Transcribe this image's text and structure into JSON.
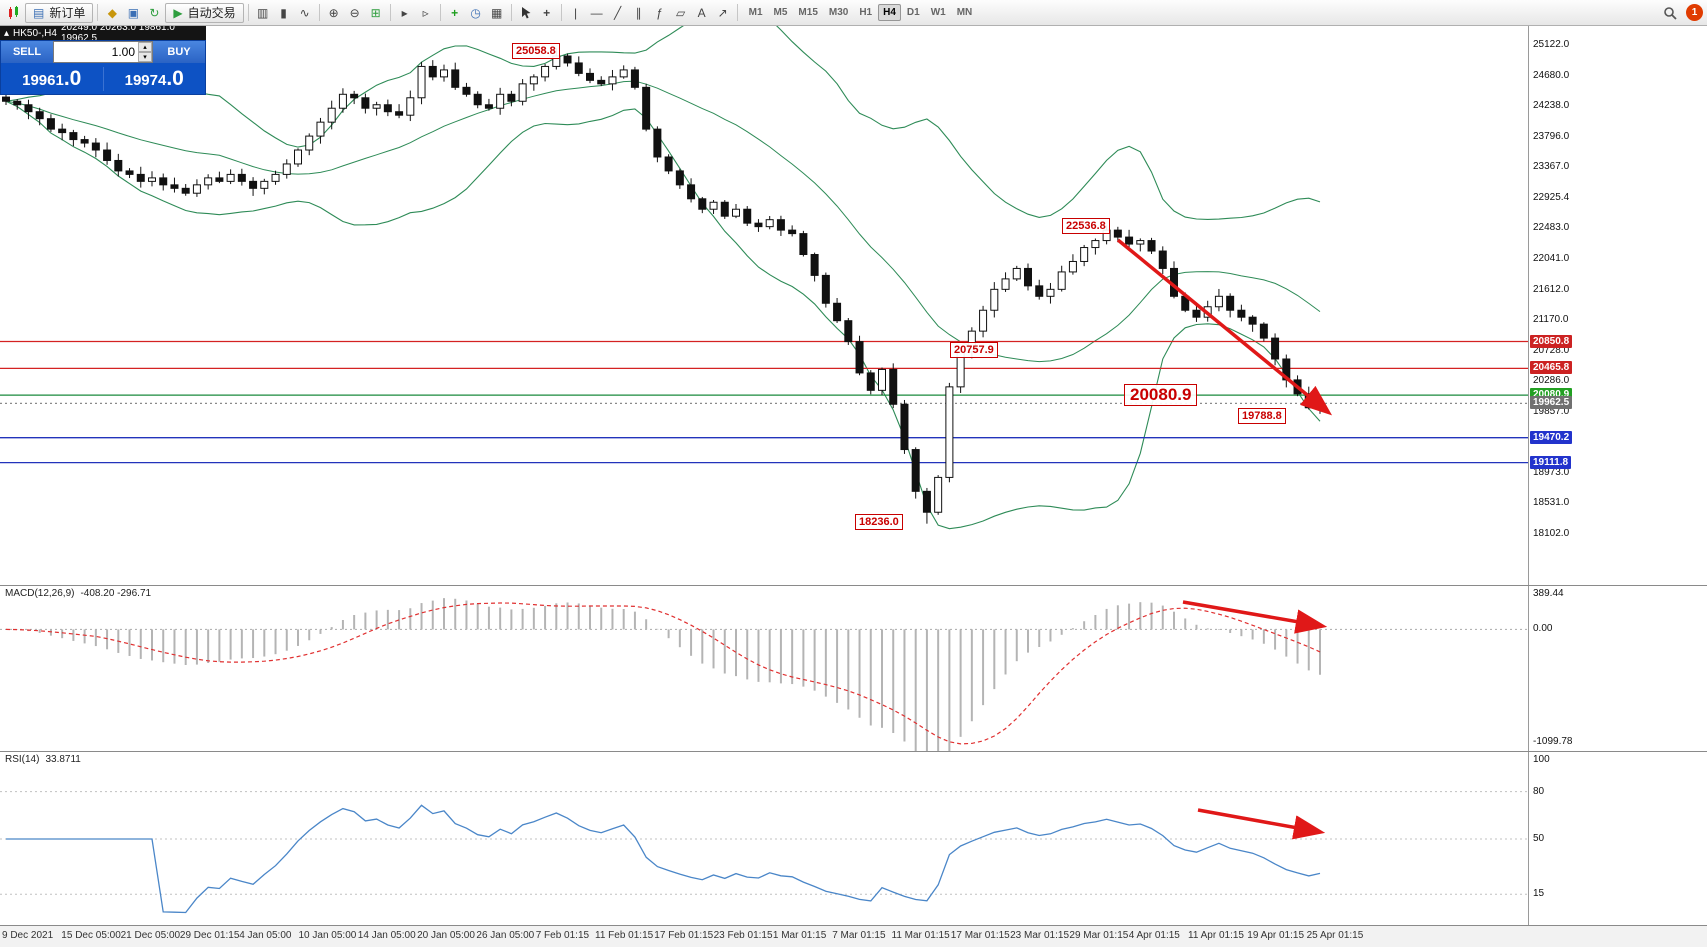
{
  "window": {
    "notification_badge": "1"
  },
  "toolbar": {
    "new_order_label": "新订单",
    "auto_trading_label": "自动交易",
    "timeframes": [
      "M1",
      "M5",
      "M15",
      "M30",
      "H1",
      "H4",
      "D1",
      "W1",
      "MN"
    ],
    "active_timeframe": "H4"
  },
  "icons": {
    "symbol_mark": "▴",
    "new_order": "▤",
    "market_watch": "◆",
    "data_window": "▣",
    "refresh": "↻",
    "auto_play": "▶",
    "bar_chart": "▥",
    "candle_chart": "▮",
    "line_chart": "∿",
    "zoom_in": "⊕",
    "zoom_out": "⊖",
    "tile_windows": "⊞",
    "auto_scroll": "▸",
    "chart_shift": "▹",
    "indicators": "+",
    "period": "◷",
    "template": "▦",
    "crosshair": "+",
    "vline": "|",
    "hline": "—",
    "trendline": "╱",
    "channel": "∥",
    "fibonacci": "ƒ",
    "shapes": "▱",
    "text_tool": "A",
    "arrow_tool": "↗",
    "spin_up": "▴",
    "spin_down": "▾"
  },
  "trade_panel": {
    "sell_label": "SELL",
    "buy_label": "BUY",
    "volume": "1.00",
    "sell_price": "19961",
    "sell_price_frac": ".0",
    "buy_price": "19974",
    "buy_price_frac": ".0"
  },
  "chart_data": {
    "type": "candlestick",
    "symbol": "HK50-",
    "timeframe": "H4",
    "symbol_bar": {
      "symbol": "HK50-,H4",
      "ohlc": "20249.0 20263.0 19861.0 19962.5"
    },
    "y_range": [
      18102,
      25122
    ],
    "price_axis_labels": [
      "25122.0",
      "24680.0",
      "24238.0",
      "23796.0",
      "23367.0",
      "22925.4",
      "22483.0",
      "22041.0",
      "21612.0",
      "21170.0",
      "20728.0",
      "20286.0",
      "19857.0",
      "19415.4",
      "18973.0",
      "18531.0",
      "18102.0"
    ],
    "closes": [
      24300,
      24250,
      24150,
      24050,
      23900,
      23850,
      23750,
      23700,
      23600,
      23450,
      23300,
      23250,
      23150,
      23200,
      23100,
      23050,
      22980,
      23100,
      23200,
      23150,
      23250,
      23150,
      23050,
      23150,
      23250,
      23400,
      23600,
      23800,
      24000,
      24200,
      24400,
      24350,
      24200,
      24250,
      24150,
      24100,
      24350,
      24800,
      24650,
      24750,
      24500,
      24400,
      24250,
      24200,
      24400,
      24300,
      24550,
      24650,
      24800,
      24950,
      24850,
      24700,
      24600,
      24550,
      24650,
      24750,
      24500,
      23900,
      23500,
      23300,
      23100,
      22900,
      22750,
      22850,
      22650,
      22750,
      22550,
      22500,
      22600,
      22450,
      22400,
      22100,
      21800,
      21400,
      21150,
      20850,
      20400,
      20150,
      20450,
      19950,
      19300,
      18700,
      18400,
      18900,
      20200,
      20700,
      21000,
      21300,
      21600,
      21750,
      21900,
      21650,
      21500,
      21600,
      21850,
      22000,
      22200,
      22300,
      22450,
      22350,
      22250,
      22300,
      22150,
      21900,
      21500,
      21300,
      21200,
      21350,
      21500,
      21300,
      21200,
      21100,
      20900,
      20600,
      20300,
      20100,
      19900,
      19960
    ],
    "extremes": {
      "high": 25058.8,
      "low": 18236.0
    },
    "levels": [
      {
        "value": 20850.8,
        "color": "#d42222",
        "style": "solid"
      },
      {
        "value": 20465.8,
        "color": "#d42222",
        "style": "solid"
      },
      {
        "value": 20080.9,
        "color": "#1a8a3c",
        "style": "solid"
      },
      {
        "value": 19962.5,
        "color": "#8a8a8a",
        "style": "dotted"
      },
      {
        "value": 19470.2,
        "color": "#2233bb",
        "style": "solid"
      },
      {
        "value": 19111.8,
        "color": "#2233bb",
        "style": "solid"
      }
    ],
    "price_tags": [
      {
        "text": "20850.8",
        "bg": "#cc2222"
      },
      {
        "text": "20465.8",
        "bg": "#cc2222"
      },
      {
        "text": "20080.9",
        "bg": "#22a022"
      },
      {
        "text": "19962.5",
        "bg": "#707070"
      },
      {
        "text": "19470.2",
        "bg": "#2233cc"
      },
      {
        "text": "19111.8",
        "bg": "#2233cc"
      }
    ],
    "annotations": [
      {
        "text": "25058.8"
      },
      {
        "text": "22536.8"
      },
      {
        "text": "20757.9"
      },
      {
        "text": "20080.9"
      },
      {
        "text": "19788.8"
      },
      {
        "text": "18236.0"
      }
    ],
    "indicators": {
      "bollinger": {
        "period": 20,
        "deviation": 2
      },
      "macd": {
        "label": "MACD(12,26,9)",
        "values": "-408.20 -296.71",
        "axis": [
          "389.44",
          "0.00",
          "-1099.78"
        ]
      },
      "rsi": {
        "label": "RSI(14)",
        "value": "33.8711",
        "axis": [
          "100",
          "80",
          "50",
          "15"
        ]
      }
    },
    "colors": {
      "bands": "#2e8b57",
      "bull": "#ffffff",
      "bear": "#111111",
      "outline": "#111111",
      "macd_hist": "#b4b4b4",
      "macd_signal": "#e03030",
      "rsi_line": "#4a86c8",
      "arrow": "#e01818"
    },
    "time_axis": [
      "9 Dec 2021",
      "15 Dec 05:00",
      "21 Dec 05:00",
      "29 Dec 01:15",
      "4 Jan 05:00",
      "10 Jan 05:00",
      "14 Jan 05:00",
      "20 Jan 05:00",
      "26 Jan 05:00",
      "7 Feb 01:15",
      "11 Feb 01:15",
      "17 Feb 01:15",
      "23 Feb 01:15",
      "1 Mar 01:15",
      "7 Mar 01:15",
      "11 Mar 01:15",
      "17 Mar 01:15",
      "23 Mar 01:15",
      "29 Mar 01:15",
      "4 Apr 01:15",
      "11 Apr 01:15",
      "19 Apr 01:15",
      "25 Apr 01:15"
    ]
  }
}
